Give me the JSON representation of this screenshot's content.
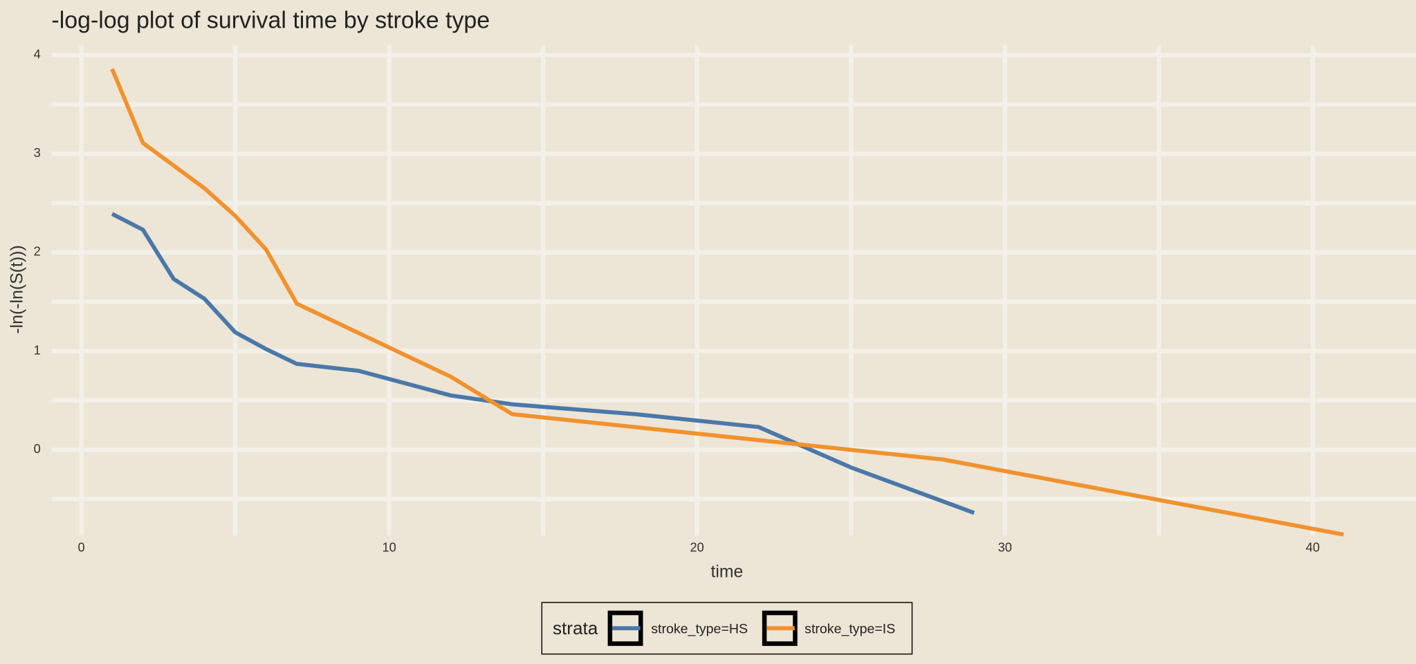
{
  "chart_data": {
    "type": "line",
    "title": "-log-log plot of survival time by stroke type",
    "x_label": "time",
    "y_label": "-ln(-ln(S(t)))",
    "legend_title": "strata",
    "legend_position": "bottom",
    "xlim": [
      -0.97,
      43.0
    ],
    "ylim": [
      -0.87,
      4.1
    ],
    "xticks": [
      0,
      10,
      20,
      30,
      40
    ],
    "yticks": [
      0,
      1,
      2,
      3,
      4
    ],
    "x_minor_ticks": [
      5,
      15,
      25,
      35
    ],
    "y_minor_ticks": [
      -0.5,
      0.5,
      1.5,
      2.5,
      3.5
    ],
    "grid": true,
    "series": [
      {
        "name": "stroke_type=HS",
        "color": "#4a78a9",
        "x": [
          1,
          2,
          3,
          4,
          5,
          6,
          7,
          9,
          12,
          14,
          18,
          22,
          25,
          29
        ],
        "values": [
          2.39,
          2.23,
          1.73,
          1.53,
          1.19,
          1.02,
          0.87,
          0.8,
          0.55,
          0.46,
          0.36,
          0.23,
          -0.18,
          -0.64
        ]
      },
      {
        "name": "stroke_type=IS",
        "color": "#f0922e",
        "x": [
          1,
          2,
          4,
          5,
          6,
          7,
          12,
          14,
          28,
          41
        ],
        "values": [
          3.86,
          3.11,
          2.65,
          2.37,
          2.03,
          1.48,
          0.74,
          0.36,
          -0.1,
          -0.86
        ]
      }
    ]
  }
}
